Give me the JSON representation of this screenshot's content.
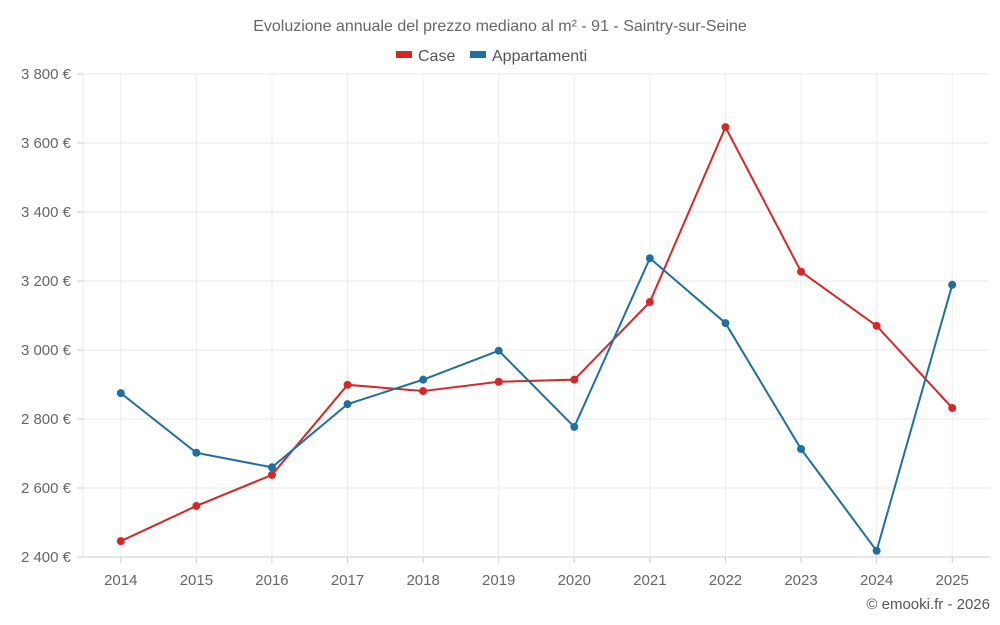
{
  "chart_data": {
    "type": "line",
    "title": "Evoluzione annuale del prezzo mediano al m² - 91 - Saintry-sur-Seine",
    "xlabel": "",
    "ylabel": "",
    "categories": [
      "2014",
      "2015",
      "2016",
      "2017",
      "2018",
      "2019",
      "2020",
      "2021",
      "2022",
      "2023",
      "2024",
      "2025"
    ],
    "series": [
      {
        "name": "Case",
        "color": "#d62728",
        "values": [
          2446,
          2548,
          2638,
          2899,
          2881,
          2908,
          2914,
          3139,
          3646,
          3227,
          3070,
          2832
        ]
      },
      {
        "name": "Appartamenti",
        "color": "#1f6fa0",
        "values": [
          2875,
          2702,
          2660,
          2843,
          2914,
          2998,
          2777,
          3266,
          3078,
          2713,
          2418,
          3189
        ]
      }
    ],
    "ylim": [
      2400,
      3800
    ],
    "yticks": [
      2400,
      2600,
      2800,
      3000,
      3200,
      3400,
      3600,
      3800
    ],
    "ytick_labels": [
      "2 400 €",
      "2 600 €",
      "2 800 €",
      "3 000 €",
      "3 200 €",
      "3 400 €",
      "3 600 €",
      "3 800 €"
    ],
    "grid": true,
    "legend_position": "top-center"
  },
  "credit": "© emooki.fr - 2026"
}
